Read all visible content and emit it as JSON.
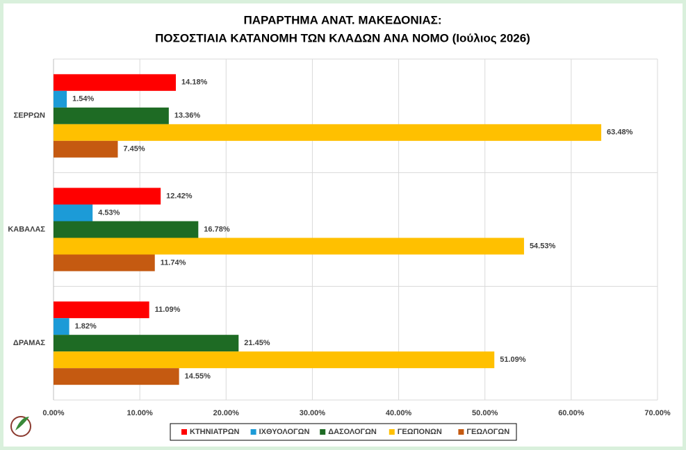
{
  "chart_data": {
    "type": "hbar",
    "title": [
      "ΠΑΡΑΡΤΗΜΑ ΑΝΑΤ. ΜΑΚΕΔΟΝΙΑΣ:",
      "ΠΟΣΟΣΤΙΑΙΑ ΚΑΤΑΝΟΜΗ ΤΩΝ ΚΛΑΔΩΝ ΑΝΑ ΝΟΜΟ (Ιούλιος 2026)"
    ],
    "categories": [
      "ΣΕΡΡΩΝ",
      "ΚΑΒΑΛΑΣ",
      "ΔΡΑΜΑΣ"
    ],
    "series": [
      {
        "name": "ΚΤΗΝΙΑΤΡΩΝ",
        "color": "#ff0000",
        "values": [
          14.18,
          12.42,
          11.09
        ],
        "value_labels": [
          "14.18%",
          "12.42%",
          "11.09%"
        ]
      },
      {
        "name": "ΙΧΘΥΟΛΟΓΩΝ",
        "color": "#1c9bd7",
        "values": [
          1.54,
          4.53,
          1.82
        ],
        "value_labels": [
          "1.54%",
          "4.53%",
          "1.82%"
        ]
      },
      {
        "name": "ΔΑΣΟΛΟΓΩΝ",
        "color": "#1e6b24",
        "values": [
          13.36,
          16.78,
          21.45
        ],
        "value_labels": [
          "13.36%",
          "16.78%",
          "21.45%"
        ]
      },
      {
        "name": "ΓΕΩΠΟΝΩΝ",
        "color": "#ffc000",
        "values": [
          63.48,
          54.53,
          51.09
        ],
        "value_labels": [
          "63.48%",
          "54.53%",
          "51.09%"
        ]
      },
      {
        "name": "ΓΕΩΛΟΓΩΝ",
        "color": "#c55a11",
        "values": [
          7.45,
          11.74,
          14.55
        ],
        "value_labels": [
          "7.45%",
          "11.74%",
          "14.55%"
        ]
      }
    ],
    "xlim": [
      0,
      70
    ],
    "xticks": [
      {
        "value": 0,
        "label": "0.00%"
      },
      {
        "value": 10,
        "label": "10.00%"
      },
      {
        "value": 20,
        "label": "20.00%"
      },
      {
        "value": 30,
        "label": "30.00%"
      },
      {
        "value": 40,
        "label": "40.00%"
      },
      {
        "value": 50,
        "label": "50.00%"
      },
      {
        "value": 60,
        "label": "60.00%"
      },
      {
        "value": 70,
        "label": "70.00%"
      }
    ],
    "grid": true,
    "legend": "bottom"
  }
}
